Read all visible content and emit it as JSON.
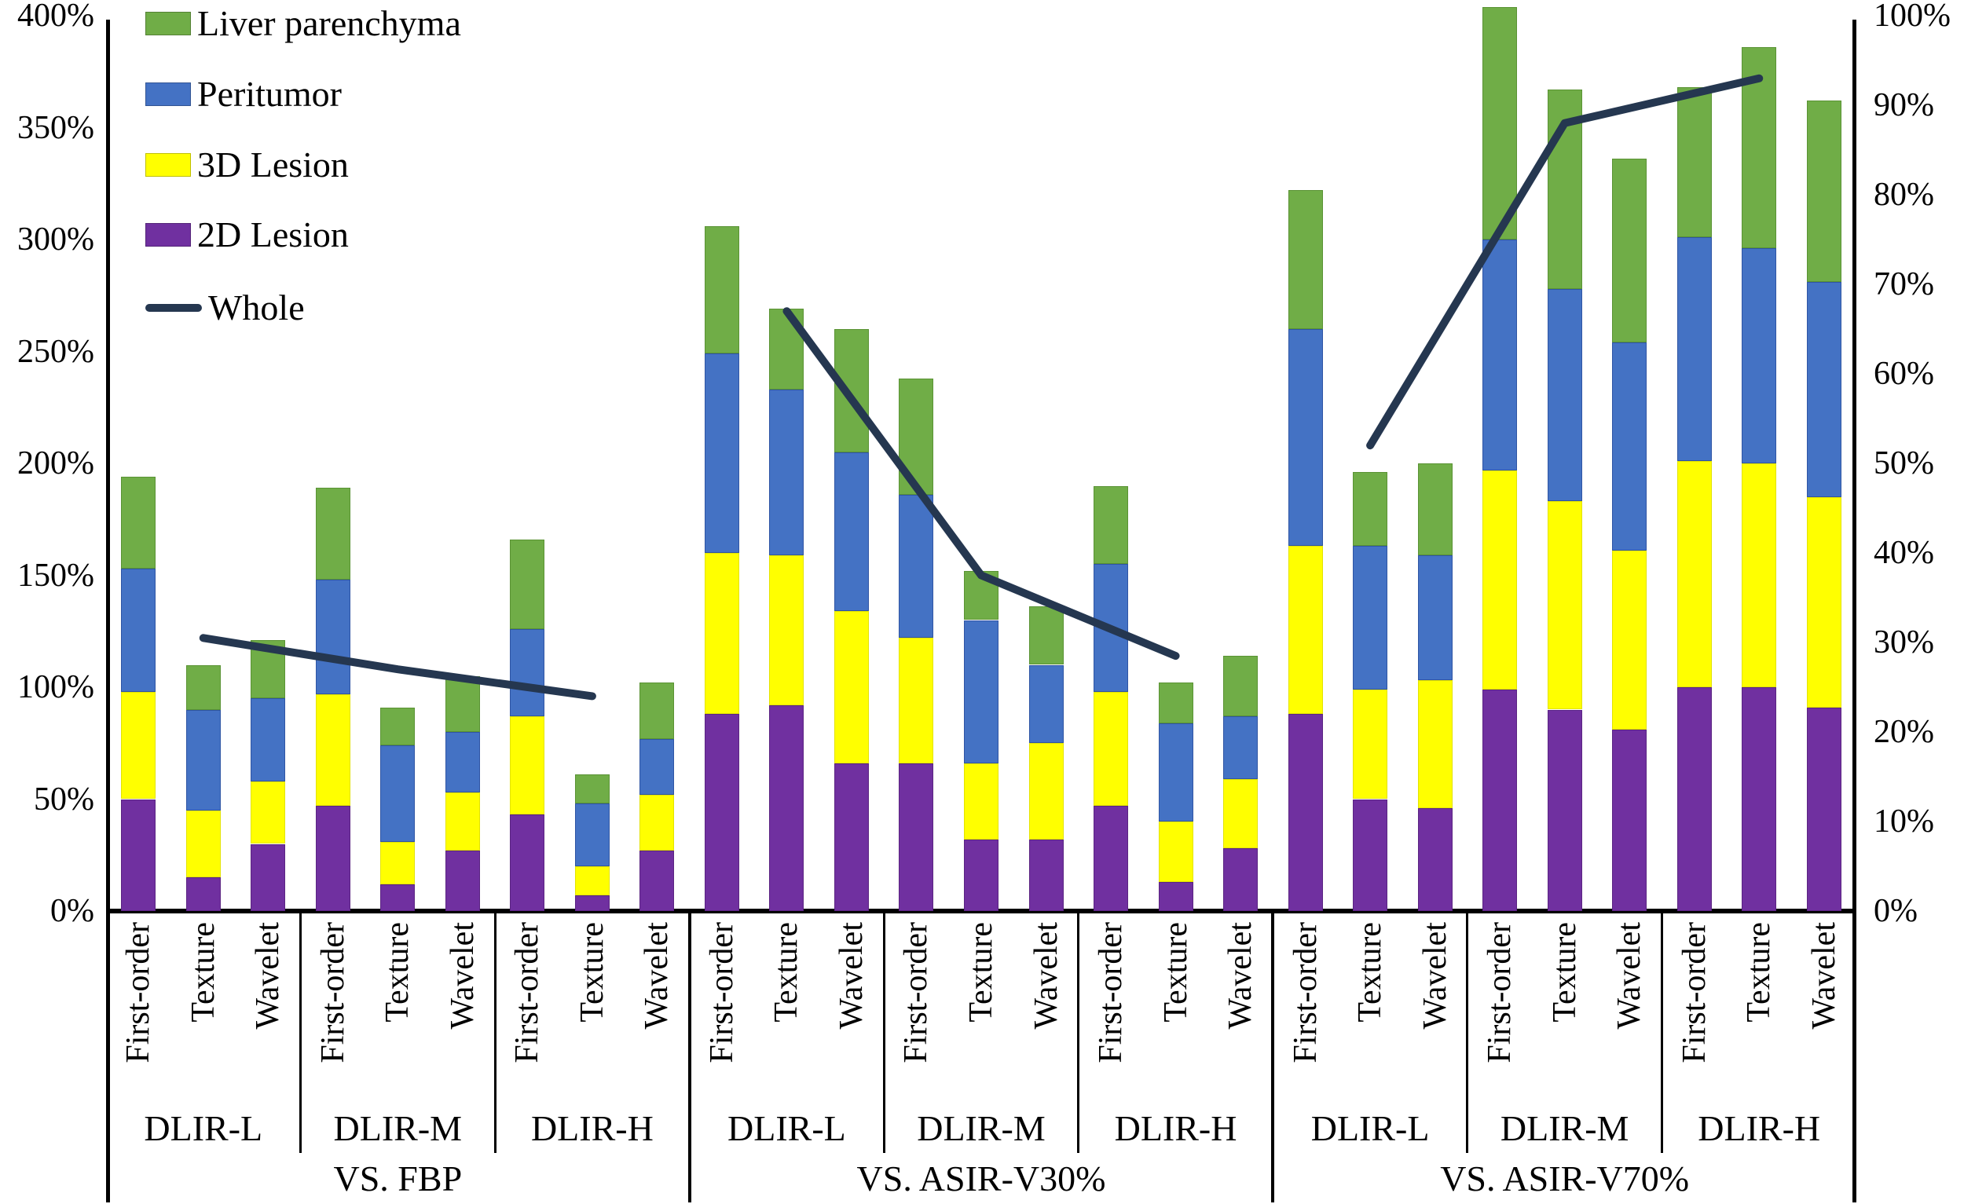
{
  "chart_data": {
    "type": "bar",
    "stacked": true,
    "title": "",
    "grid": false,
    "legend_position": "top-left-inside",
    "legend": [
      {
        "label": "Liver parenchyma",
        "color": "#70AD47",
        "kind": "box"
      },
      {
        "label": "Peritumor",
        "color": "#4472C4",
        "kind": "box"
      },
      {
        "label": "3D Lesion",
        "color": "#FFFF00",
        "kind": "box"
      },
      {
        "label": "2D Lesion",
        "color": "#7030A0",
        "kind": "box"
      },
      {
        "label": "Whole",
        "color": "#253750",
        "kind": "line"
      }
    ],
    "left_axis": {
      "min": 0,
      "max": 400,
      "step": 50,
      "unit": "%",
      "ticks": [
        "0%",
        "50%",
        "100%",
        "150%",
        "200%",
        "250%",
        "300%",
        "350%",
        "400%"
      ]
    },
    "right_axis": {
      "min": 0,
      "max": 100,
      "step": 10,
      "unit": "%",
      "ticks": [
        "0%",
        "10%",
        "20%",
        "30%",
        "40%",
        "50%",
        "60%",
        "70%",
        "80%",
        "90%",
        "100%"
      ]
    },
    "series_stack_order_bottom_to_top": [
      "2D Lesion",
      "3D Lesion",
      "Peritumor",
      "Liver parenchyma"
    ],
    "series_colors": {
      "2D Lesion": {
        "fill": "#7030A0",
        "border": "#5B2482"
      },
      "3D Lesion": {
        "fill": "#FFFF00",
        "border": "#E3E300"
      },
      "Peritumor": {
        "fill": "#4472C4",
        "border": "#2F55A4"
      },
      "Liver parenchyma": {
        "fill": "#70AD47",
        "border": "#5A9334"
      }
    },
    "line_series": {
      "name": "Whole",
      "color": "#253750",
      "axis": "right",
      "note": "one point per DLIR subgroup, centered on the Texture bar; separate line per comparison group"
    },
    "bar_categories": [
      "First-order",
      "Texture",
      "Wavelet"
    ],
    "groups": [
      {
        "label": "VS. FBP",
        "subgroups": [
          {
            "label": "DLIR-L",
            "whole_right_pct": 30.5,
            "bars": [
              {
                "label": "First-order",
                "cum_left_pct": {
                  "lesion2d": 50,
                  "lesion3d": 98,
                  "peritumor": 153,
                  "liver": 194
                }
              },
              {
                "label": "Texture",
                "cum_left_pct": {
                  "lesion2d": 15,
                  "lesion3d": 45,
                  "peritumor": 90,
                  "liver": 110
                }
              },
              {
                "label": "Wavelet",
                "cum_left_pct": {
                  "lesion2d": 30,
                  "lesion3d": 58,
                  "peritumor": 95,
                  "liver": 121
                }
              }
            ]
          },
          {
            "label": "DLIR-M",
            "whole_right_pct": 27,
            "bars": [
              {
                "label": "First-order",
                "cum_left_pct": {
                  "lesion2d": 47,
                  "lesion3d": 97,
                  "peritumor": 148,
                  "liver": 189
                }
              },
              {
                "label": "Texture",
                "cum_left_pct": {
                  "lesion2d": 12,
                  "lesion3d": 31,
                  "peritumor": 74,
                  "liver": 91
                }
              },
              {
                "label": "Wavelet",
                "cum_left_pct": {
                  "lesion2d": 27,
                  "lesion3d": 53,
                  "peritumor": 80,
                  "liver": 105
                }
              }
            ]
          },
          {
            "label": "DLIR-H",
            "whole_right_pct": 24,
            "bars": [
              {
                "label": "First-order",
                "cum_left_pct": {
                  "lesion2d": 43,
                  "lesion3d": 87,
                  "peritumor": 126,
                  "liver": 166
                }
              },
              {
                "label": "Texture",
                "cum_left_pct": {
                  "lesion2d": 7,
                  "lesion3d": 20,
                  "peritumor": 48,
                  "liver": 61
                }
              },
              {
                "label": "Wavelet",
                "cum_left_pct": {
                  "lesion2d": 27,
                  "lesion3d": 52,
                  "peritumor": 77,
                  "liver": 102
                }
              }
            ]
          }
        ]
      },
      {
        "label": "VS. ASIR-V30%",
        "subgroups": [
          {
            "label": "DLIR-L",
            "whole_right_pct": 67,
            "bars": [
              {
                "label": "First-order",
                "cum_left_pct": {
                  "lesion2d": 88,
                  "lesion3d": 160,
                  "peritumor": 249,
                  "liver": 306
                }
              },
              {
                "label": "Texture",
                "cum_left_pct": {
                  "lesion2d": 92,
                  "lesion3d": 159,
                  "peritumor": 233,
                  "liver": 269
                }
              },
              {
                "label": "Wavelet",
                "cum_left_pct": {
                  "lesion2d": 66,
                  "lesion3d": 134,
                  "peritumor": 205,
                  "liver": 260
                }
              }
            ]
          },
          {
            "label": "DLIR-M",
            "whole_right_pct": 37.5,
            "bars": [
              {
                "label": "First-order",
                "cum_left_pct": {
                  "lesion2d": 66,
                  "lesion3d": 122,
                  "peritumor": 186,
                  "liver": 238
                }
              },
              {
                "label": "Texture",
                "cum_left_pct": {
                  "lesion2d": 32,
                  "lesion3d": 66,
                  "peritumor": 130,
                  "liver": 152
                }
              },
              {
                "label": "Wavelet",
                "cum_left_pct": {
                  "lesion2d": 32,
                  "lesion3d": 75,
                  "peritumor": 110,
                  "liver": 136
                }
              }
            ]
          },
          {
            "label": "DLIR-H",
            "whole_right_pct": 28.5,
            "bars": [
              {
                "label": "First-order",
                "cum_left_pct": {
                  "lesion2d": 47,
                  "lesion3d": 98,
                  "peritumor": 155,
                  "liver": 190
                }
              },
              {
                "label": "Texture",
                "cum_left_pct": {
                  "lesion2d": 13,
                  "lesion3d": 40,
                  "peritumor": 84,
                  "liver": 102
                }
              },
              {
                "label": "Wavelet",
                "cum_left_pct": {
                  "lesion2d": 28,
                  "lesion3d": 59,
                  "peritumor": 87,
                  "liver": 114
                }
              }
            ]
          }
        ]
      },
      {
        "label": "VS. ASIR-V70%",
        "subgroups": [
          {
            "label": "DLIR-L",
            "whole_right_pct": 52,
            "bars": [
              {
                "label": "First-order",
                "cum_left_pct": {
                  "lesion2d": 88,
                  "lesion3d": 163,
                  "peritumor": 260,
                  "liver": 322
                }
              },
              {
                "label": "Texture",
                "cum_left_pct": {
                  "lesion2d": 50,
                  "lesion3d": 99,
                  "peritumor": 163,
                  "liver": 196
                }
              },
              {
                "label": "Wavelet",
                "cum_left_pct": {
                  "lesion2d": 46,
                  "lesion3d": 103,
                  "peritumor": 159,
                  "liver": 200
                }
              }
            ]
          },
          {
            "label": "DLIR-M",
            "whole_right_pct": 88,
            "bars": [
              {
                "label": "First-order",
                "cum_left_pct": {
                  "lesion2d": 99,
                  "lesion3d": 197,
                  "peritumor": 300,
                  "liver": 404
                }
              },
              {
                "label": "Texture",
                "cum_left_pct": {
                  "lesion2d": 90,
                  "lesion3d": 183,
                  "peritumor": 278,
                  "liver": 367
                }
              },
              {
                "label": "Wavelet",
                "cum_left_pct": {
                  "lesion2d": 81,
                  "lesion3d": 161,
                  "peritumor": 254,
                  "liver": 336
                }
              }
            ]
          },
          {
            "label": "DLIR-H",
            "whole_right_pct": 93,
            "bars": [
              {
                "label": "First-order",
                "cum_left_pct": {
                  "lesion2d": 100,
                  "lesion3d": 201,
                  "peritumor": 301,
                  "liver": 368
                }
              },
              {
                "label": "Texture",
                "cum_left_pct": {
                  "lesion2d": 100,
                  "lesion3d": 200,
                  "peritumor": 296,
                  "liver": 386
                }
              },
              {
                "label": "Wavelet",
                "cum_left_pct": {
                  "lesion2d": 91,
                  "lesion3d": 185,
                  "peritumor": 281,
                  "liver": 362
                }
              }
            ]
          }
        ]
      }
    ]
  }
}
